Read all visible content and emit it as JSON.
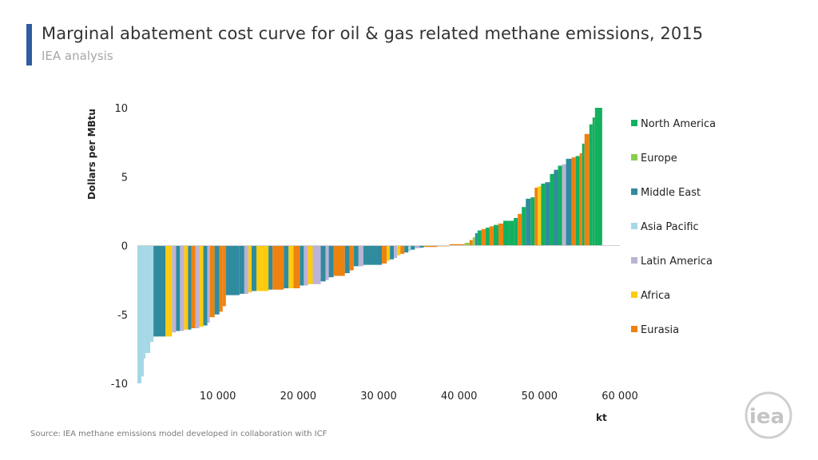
{
  "header": {
    "title": "Marginal abatement cost curve for oil & gas related methane emissions, 2015",
    "subtitle": "IEA analysis"
  },
  "footer": {
    "source": "Source: IEA methane emissions model developed in collaboration with ICF",
    "logo_text": "iea"
  },
  "colors": {
    "North America": "#13b05f",
    "Europe": "#8ccd4f",
    "Middle East": "#2f8b9e",
    "Asia Pacific": "#a5d8e6",
    "Latin America": "#bcb3d6",
    "Africa": "#fdcb10",
    "Eurasia": "#ee820f",
    "accent": "#2f5d9f"
  },
  "legend": [
    {
      "label": "North America",
      "color": "#13b05f"
    },
    {
      "label": "Europe",
      "color": "#8ccd4f"
    },
    {
      "label": "Middle East",
      "color": "#2f8b9e"
    },
    {
      "label": "Asia Pacific",
      "color": "#a5d8e6"
    },
    {
      "label": "Latin America",
      "color": "#bcb3d6"
    },
    {
      "label": "Africa",
      "color": "#fdcb10"
    },
    {
      "label": "Eurasia",
      "color": "#ee820f"
    }
  ],
  "chart_data": {
    "type": "bar",
    "subtype": "marginal abatement cost curve (variable-width bars)",
    "title": "Marginal abatement cost curve for oil & gas related methane emissions, 2015",
    "xlabel": "kt",
    "ylabel": "Dollars per MBtu",
    "xlim": [
      0,
      60000
    ],
    "ylim": [
      -10,
      10
    ],
    "x_ticks": [
      10000,
      20000,
      30000,
      40000,
      50000,
      60000
    ],
    "x_tick_labels": [
      "10 000",
      "20 000",
      "30 000",
      "40 000",
      "50 000",
      "60 000"
    ],
    "y_ticks": [
      -10,
      -5,
      0,
      5,
      10
    ],
    "y_tick_labels": [
      "-10",
      "-5",
      "0",
      "5",
      "10"
    ],
    "grid": false,
    "legend_position": "right",
    "series_names": [
      "North America",
      "Europe",
      "Middle East",
      "Asia Pacific",
      "Latin America",
      "Africa",
      "Eurasia"
    ],
    "segments": [
      {
        "x0": 0,
        "x1": 500,
        "y": -10,
        "region": "Asia Pacific"
      },
      {
        "x0": 500,
        "x1": 800,
        "y": -9.5,
        "region": "Asia Pacific"
      },
      {
        "x0": 800,
        "x1": 1000,
        "y": -8.2,
        "region": "Asia Pacific"
      },
      {
        "x0": 1000,
        "x1": 1600,
        "y": -7.8,
        "region": "Asia Pacific"
      },
      {
        "x0": 1600,
        "x1": 2000,
        "y": -7.0,
        "region": "Asia Pacific"
      },
      {
        "x0": 2000,
        "x1": 3500,
        "y": -6.6,
        "region": "Middle East"
      },
      {
        "x0": 3500,
        "x1": 4300,
        "y": -6.6,
        "region": "Africa"
      },
      {
        "x0": 4300,
        "x1": 4800,
        "y": -6.3,
        "region": "Latin America"
      },
      {
        "x0": 4800,
        "x1": 5300,
        "y": -6.2,
        "region": "Middle East"
      },
      {
        "x0": 5300,
        "x1": 5800,
        "y": -6.2,
        "region": "Latin America"
      },
      {
        "x0": 5800,
        "x1": 6300,
        "y": -6.1,
        "region": "Africa"
      },
      {
        "x0": 6300,
        "x1": 6700,
        "y": -6.1,
        "region": "Middle East"
      },
      {
        "x0": 6700,
        "x1": 7200,
        "y": -6.0,
        "region": "Eurasia"
      },
      {
        "x0": 7200,
        "x1": 7700,
        "y": -6.0,
        "region": "Latin America"
      },
      {
        "x0": 7700,
        "x1": 8200,
        "y": -5.9,
        "region": "Africa"
      },
      {
        "x0": 8200,
        "x1": 8700,
        "y": -5.8,
        "region": "Middle East"
      },
      {
        "x0": 8700,
        "x1": 9000,
        "y": -5.6,
        "region": "Latin America"
      },
      {
        "x0": 9000,
        "x1": 9600,
        "y": -5.2,
        "region": "Eurasia"
      },
      {
        "x0": 9600,
        "x1": 10200,
        "y": -5.0,
        "region": "Middle East"
      },
      {
        "x0": 10200,
        "x1": 10600,
        "y": -4.8,
        "region": "Eurasia"
      },
      {
        "x0": 10600,
        "x1": 11000,
        "y": -4.4,
        "region": "Eurasia"
      },
      {
        "x0": 11000,
        "x1": 12700,
        "y": -3.6,
        "region": "Middle East"
      },
      {
        "x0": 12700,
        "x1": 13300,
        "y": -3.5,
        "region": "Middle East"
      },
      {
        "x0": 13300,
        "x1": 13800,
        "y": -3.5,
        "region": "Latin America"
      },
      {
        "x0": 13800,
        "x1": 14200,
        "y": -3.4,
        "region": "Africa"
      },
      {
        "x0": 14200,
        "x1": 14800,
        "y": -3.3,
        "region": "Middle East"
      },
      {
        "x0": 14800,
        "x1": 16300,
        "y": -3.3,
        "region": "Africa"
      },
      {
        "x0": 16300,
        "x1": 16800,
        "y": -3.2,
        "region": "Middle East"
      },
      {
        "x0": 16800,
        "x1": 18200,
        "y": -3.2,
        "region": "Eurasia"
      },
      {
        "x0": 18200,
        "x1": 18800,
        "y": -3.1,
        "region": "Middle East"
      },
      {
        "x0": 18800,
        "x1": 19400,
        "y": -3.1,
        "region": "Africa"
      },
      {
        "x0": 19400,
        "x1": 20200,
        "y": -3.1,
        "region": "Eurasia"
      },
      {
        "x0": 20200,
        "x1": 20700,
        "y": -2.9,
        "region": "Middle East"
      },
      {
        "x0": 20700,
        "x1": 21200,
        "y": -2.9,
        "region": "Latin America"
      },
      {
        "x0": 21200,
        "x1": 21800,
        "y": -2.8,
        "region": "Africa"
      },
      {
        "x0": 21800,
        "x1": 22800,
        "y": -2.8,
        "region": "Latin America"
      },
      {
        "x0": 22800,
        "x1": 23400,
        "y": -2.6,
        "region": "Middle East"
      },
      {
        "x0": 23400,
        "x1": 23800,
        "y": -2.5,
        "region": "Latin America"
      },
      {
        "x0": 23800,
        "x1": 24400,
        "y": -2.3,
        "region": "Middle East"
      },
      {
        "x0": 24400,
        "x1": 25800,
        "y": -2.2,
        "region": "Eurasia"
      },
      {
        "x0": 25800,
        "x1": 26400,
        "y": -2.0,
        "region": "Middle East"
      },
      {
        "x0": 26400,
        "x1": 26900,
        "y": -1.8,
        "region": "Eurasia"
      },
      {
        "x0": 26900,
        "x1": 27500,
        "y": -1.5,
        "region": "Middle East"
      },
      {
        "x0": 27500,
        "x1": 28100,
        "y": -1.5,
        "region": "Latin America"
      },
      {
        "x0": 28100,
        "x1": 29800,
        "y": -1.4,
        "region": "Middle East"
      },
      {
        "x0": 29800,
        "x1": 30400,
        "y": -1.4,
        "region": "Middle East"
      },
      {
        "x0": 30400,
        "x1": 31000,
        "y": -1.3,
        "region": "Eurasia"
      },
      {
        "x0": 31000,
        "x1": 31400,
        "y": -1.1,
        "region": "Africa"
      },
      {
        "x0": 31400,
        "x1": 31900,
        "y": -1.0,
        "region": "Middle East"
      },
      {
        "x0": 31900,
        "x1": 32300,
        "y": -0.9,
        "region": "Latin America"
      },
      {
        "x0": 32300,
        "x1": 32700,
        "y": -0.7,
        "region": "Africa"
      },
      {
        "x0": 32700,
        "x1": 33200,
        "y": -0.6,
        "region": "Eurasia"
      },
      {
        "x0": 33200,
        "x1": 33700,
        "y": -0.5,
        "region": "Middle East"
      },
      {
        "x0": 33700,
        "x1": 34000,
        "y": -0.4,
        "region": "Asia Pacific"
      },
      {
        "x0": 34000,
        "x1": 34500,
        "y": -0.3,
        "region": "Middle East"
      },
      {
        "x0": 34500,
        "x1": 35100,
        "y": -0.2,
        "region": "Latin America"
      },
      {
        "x0": 35100,
        "x1": 35600,
        "y": -0.15,
        "region": "Middle East"
      },
      {
        "x0": 35600,
        "x1": 37300,
        "y": -0.1,
        "region": "Eurasia"
      },
      {
        "x0": 37300,
        "x1": 38800,
        "y": -0.05,
        "region": "Eurasia"
      },
      {
        "x0": 38800,
        "x1": 40700,
        "y": 0.1,
        "region": "Eurasia"
      },
      {
        "x0": 40700,
        "x1": 41300,
        "y": 0.2,
        "region": "Europe"
      },
      {
        "x0": 41300,
        "x1": 41700,
        "y": 0.4,
        "region": "Eurasia"
      },
      {
        "x0": 41700,
        "x1": 42000,
        "y": 0.6,
        "region": "Europe"
      },
      {
        "x0": 42000,
        "x1": 42300,
        "y": 0.9,
        "region": "Middle East"
      },
      {
        "x0": 42300,
        "x1": 42800,
        "y": 1.1,
        "region": "North America"
      },
      {
        "x0": 42800,
        "x1": 43300,
        "y": 1.2,
        "region": "Eurasia"
      },
      {
        "x0": 43300,
        "x1": 43800,
        "y": 1.3,
        "region": "North America"
      },
      {
        "x0": 43800,
        "x1": 44300,
        "y": 1.4,
        "region": "Eurasia"
      },
      {
        "x0": 44300,
        "x1": 44900,
        "y": 1.5,
        "region": "North America"
      },
      {
        "x0": 44900,
        "x1": 45500,
        "y": 1.6,
        "region": "Eurasia"
      },
      {
        "x0": 45500,
        "x1": 46200,
        "y": 1.8,
        "region": "North America"
      },
      {
        "x0": 46200,
        "x1": 46800,
        "y": 1.8,
        "region": "North America"
      },
      {
        "x0": 46800,
        "x1": 47300,
        "y": 2.0,
        "region": "North America"
      },
      {
        "x0": 47300,
        "x1": 47800,
        "y": 2.3,
        "region": "Eurasia"
      },
      {
        "x0": 47800,
        "x1": 48300,
        "y": 2.8,
        "region": "North America"
      },
      {
        "x0": 48300,
        "x1": 48900,
        "y": 3.4,
        "region": "Middle East"
      },
      {
        "x0": 48900,
        "x1": 49400,
        "y": 3.5,
        "region": "North America"
      },
      {
        "x0": 49400,
        "x1": 49800,
        "y": 4.2,
        "region": "Eurasia"
      },
      {
        "x0": 49800,
        "x1": 50200,
        "y": 4.3,
        "region": "Africa"
      },
      {
        "x0": 50200,
        "x1": 50700,
        "y": 4.5,
        "region": "North America"
      },
      {
        "x0": 50700,
        "x1": 51300,
        "y": 4.6,
        "region": "Middle East"
      },
      {
        "x0": 51300,
        "x1": 51800,
        "y": 5.2,
        "region": "North America"
      },
      {
        "x0": 51800,
        "x1": 52300,
        "y": 5.5,
        "region": "Middle East"
      },
      {
        "x0": 52300,
        "x1": 52800,
        "y": 5.8,
        "region": "North America"
      },
      {
        "x0": 52800,
        "x1": 53300,
        "y": 5.9,
        "region": "Latin America"
      },
      {
        "x0": 53300,
        "x1": 54000,
        "y": 6.3,
        "region": "Middle East"
      },
      {
        "x0": 54000,
        "x1": 54500,
        "y": 6.4,
        "region": "Eurasia"
      },
      {
        "x0": 54500,
        "x1": 55000,
        "y": 6.5,
        "region": "North America"
      },
      {
        "x0": 55000,
        "x1": 55300,
        "y": 6.7,
        "region": "Eurasia"
      },
      {
        "x0": 55300,
        "x1": 55600,
        "y": 7.4,
        "region": "North America"
      },
      {
        "x0": 55600,
        "x1": 56200,
        "y": 8.1,
        "region": "Eurasia"
      },
      {
        "x0": 56200,
        "x1": 56600,
        "y": 8.8,
        "region": "North America"
      },
      {
        "x0": 56600,
        "x1": 56900,
        "y": 9.3,
        "region": "North America"
      },
      {
        "x0": 56900,
        "x1": 57800,
        "y": 10,
        "region": "North America"
      }
    ]
  }
}
